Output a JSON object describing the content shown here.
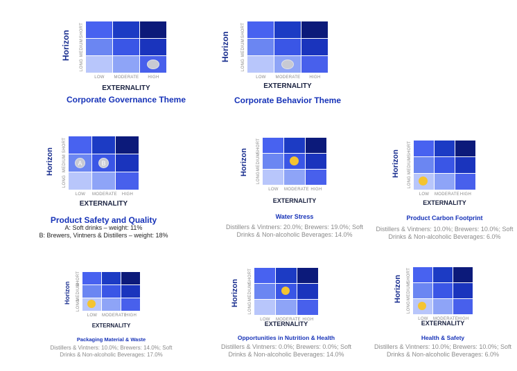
{
  "axes": {
    "y_title": "Horizon",
    "x_title": "EXTERNALITY",
    "rows": [
      "SHORT",
      "MEDIUM",
      "LONG"
    ],
    "cols": [
      "LOW",
      "MODERATE",
      "HIGH"
    ]
  },
  "colors": {
    "cells": [
      [
        "#4862f0",
        "#1c3bc4",
        "#0c1a7a"
      ],
      [
        "#6b86f2",
        "#3a56e6",
        "#1a34bd"
      ],
      [
        "#b8c6fb",
        "#8ea4f7",
        "#4860ec"
      ]
    ],
    "title": "#1733b8",
    "marker_grey": "#c8cad3",
    "marker_gold": "#f4c430"
  },
  "panels": [
    {
      "id": "corporate-governance",
      "title": "Corporate Governance Theme",
      "desc": [],
      "markers": [
        {
          "row": 2,
          "col": 2,
          "label": ""
        }
      ]
    },
    {
      "id": "corporate-behavior",
      "title": "Corporate Behavior Theme",
      "desc": [],
      "markers": [
        {
          "row": 2,
          "col": 1,
          "label": ""
        }
      ]
    },
    {
      "id": "product-safety",
      "title": "Product Safety and Quality",
      "desc": [
        "A: Soft drinks – weight: 11%",
        "B: Brewers, Vintners & Distillers – weight: 18%"
      ],
      "markers": [
        {
          "row": 1,
          "col": 0,
          "label": "A"
        },
        {
          "row": 1,
          "col": 1,
          "label": "B"
        }
      ]
    },
    {
      "id": "water-stress",
      "title": "Water Stress",
      "desc": [
        "Distillers & Vintners: 20.0%; Brewers: 19.0%; Soft",
        "Drinks & Non-alcoholic Beverages: 14.0%"
      ],
      "markers": [
        {
          "row": 1,
          "col": 1,
          "label": ""
        }
      ]
    },
    {
      "id": "product-carbon",
      "title": "Product Carbon Footprint",
      "desc": [
        "Distillers & Vintners: 10.0%; Brewers: 10.0%; Soft",
        "Drinks & Non-alcoholic Beverages: 6.0%"
      ],
      "markers": [
        {
          "row": 2,
          "col": 0,
          "label": ""
        }
      ]
    },
    {
      "id": "packaging",
      "title": "Packaging Material & Waste",
      "desc": [
        "Distillers & Vintners: 10.0%; Brewers: 14.0%; Soft",
        "Drinks & Non-alcoholic Beverages: 17.0%"
      ],
      "markers": [
        {
          "row": 2,
          "col": 0,
          "label": ""
        }
      ]
    },
    {
      "id": "nutrition-health",
      "title": "Opportunities in Nutrition & Health",
      "desc": [
        "Distillers & Vintners: 0.0%; Brewers: 0.0%; Soft",
        "Drinks & Non-alcoholic Beverages: 14.0%"
      ],
      "markers": [
        {
          "row": 1,
          "col": 1,
          "label": ""
        }
      ]
    },
    {
      "id": "health-safety",
      "title": "Health & Safety",
      "desc": [
        "Distillers & Vintners: 10.0%; Brewers: 10.0%; Soft",
        "Drinks & Non-alcoholic Beverages: 6.0%"
      ],
      "markers": [
        {
          "row": 2,
          "col": 0,
          "label": ""
        }
      ]
    }
  ]
}
